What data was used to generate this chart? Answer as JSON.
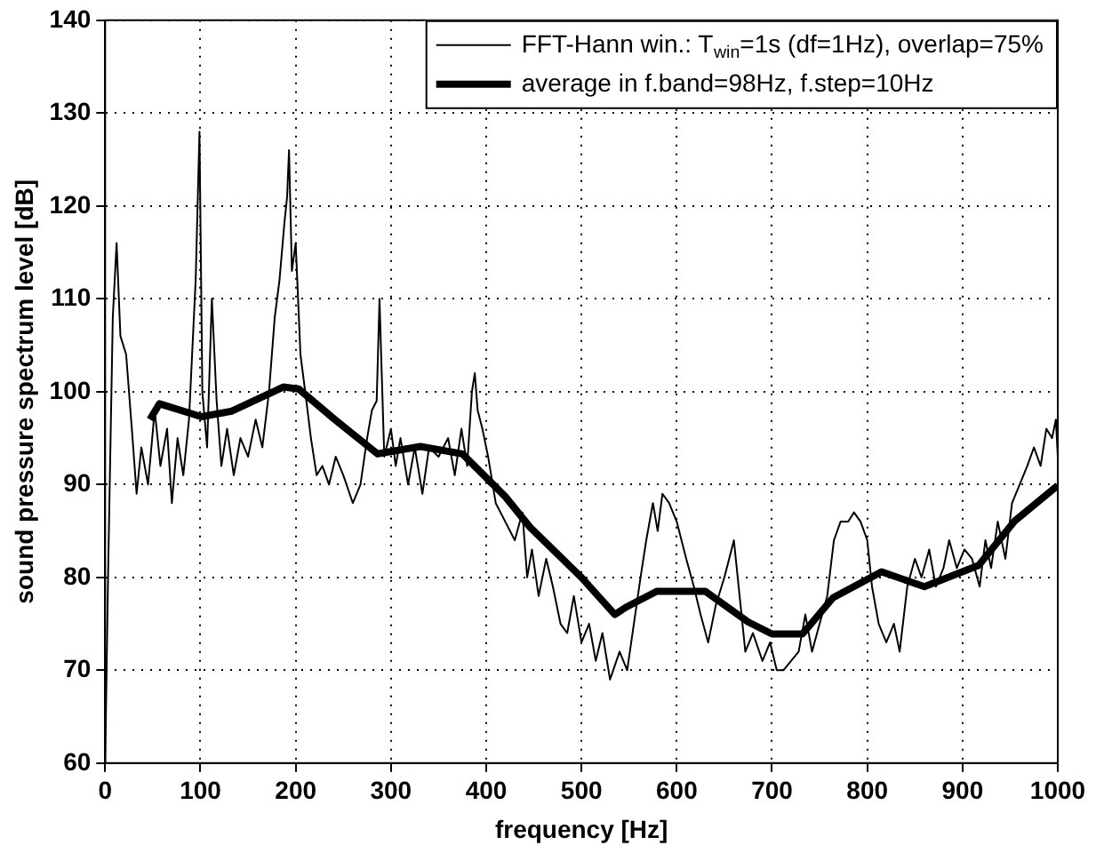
{
  "chart_data": {
    "type": "line",
    "xlabel": "frequency [Hz]",
    "ylabel": "sound pressure spectrum level [dB]",
    "xlim": [
      0,
      1000
    ],
    "xticks": [
      0,
      100,
      200,
      300,
      400,
      500,
      600,
      700,
      800,
      900,
      1000
    ],
    "ylim": [
      60,
      140
    ],
    "yticks": [
      60,
      70,
      80,
      90,
      100,
      110,
      120,
      130,
      140
    ],
    "grid": true,
    "legend": "top right",
    "marker": "none",
    "line_style": "solid",
    "series": [
      {
        "name": "FFT-Hann win.: T$_{win}$=1s (df=1Hz), overlap=75%",
        "color": "#000000",
        "x": [
          0,
          3,
          8,
          12,
          16,
          22,
          28,
          33,
          38,
          45,
          52,
          58,
          65,
          70,
          76,
          82,
          88,
          95,
          99,
          102,
          107,
          112,
          117,
          122,
          128,
          135,
          142,
          150,
          158,
          165,
          172,
          178,
          183,
          188,
          191,
          193,
          196,
          200,
          205,
          210,
          216,
          222,
          228,
          235,
          242,
          250,
          260,
          268,
          275,
          280,
          285,
          288,
          290,
          293,
          300,
          305,
          310,
          318,
          325,
          333,
          340,
          350,
          360,
          367,
          374,
          380,
          385,
          388,
          391,
          396,
          402,
          410,
          420,
          430,
          438,
          443,
          448,
          455,
          463,
          470,
          478,
          485,
          492,
          500,
          508,
          515,
          522,
          530,
          540,
          548,
          555,
          562,
          568,
          575,
          580,
          585,
          592,
          600,
          610,
          618,
          625,
          633,
          641,
          650,
          655,
          660,
          665,
          672,
          680,
          690,
          698,
          705,
          712,
          720,
          728,
          735,
          742,
          750,
          758,
          765,
          772,
          780,
          786,
          793,
          800,
          805,
          812,
          820,
          828,
          834,
          842,
          850,
          857,
          865,
          872,
          880,
          886,
          894,
          902,
          910,
          918,
          924,
          930,
          937,
          945,
          952,
          960,
          968,
          975,
          982,
          988,
          994,
          998,
          1000
        ],
        "values": [
          60,
          80,
          108,
          116,
          106,
          104,
          96,
          89,
          94,
          90,
          98,
          92,
          96,
          88,
          95,
          91,
          97,
          112,
          128,
          100,
          94,
          110,
          99,
          92,
          96,
          91,
          95,
          93,
          97,
          94,
          100,
          108,
          112,
          118,
          121,
          126,
          113,
          116,
          104,
          100,
          95,
          91,
          92,
          90,
          93,
          91,
          88,
          90,
          95,
          98,
          99,
          110,
          103,
          93,
          96,
          92,
          95,
          90,
          94,
          89,
          94,
          93,
          95,
          91,
          96,
          92,
          100,
          102,
          98,
          96,
          93,
          88,
          86,
          84,
          87,
          80,
          83,
          78,
          82,
          79,
          75,
          74,
          78,
          73,
          75,
          71,
          74,
          69,
          72,
          70,
          75,
          80,
          84,
          88,
          85,
          89,
          88,
          86,
          82,
          79,
          76,
          73,
          77,
          80,
          82,
          84,
          79,
          72,
          74,
          71,
          73,
          70,
          70,
          71,
          72,
          76,
          72,
          75,
          78,
          84,
          86,
          86,
          87,
          86,
          84,
          79,
          75,
          73,
          75,
          72,
          79,
          82,
          80,
          83,
          79,
          81,
          84,
          81,
          83,
          82,
          79,
          84,
          81,
          86,
          82,
          88,
          90,
          92,
          94,
          92,
          96,
          95,
          97,
          93
        ]
      },
      {
        "name": "average in f.band=98Hz, f.step=10Hz",
        "color": "#000000",
        "x": [
          47,
          57,
          101,
          133,
          187,
          203,
          241,
          286,
          331,
          375,
          420,
          446,
          500,
          535,
          547,
          579,
          630,
          675,
          700,
          732,
          764,
          815,
          860,
          917,
          955,
          1000
        ],
        "values": [
          97,
          98.7,
          97.3,
          97.9,
          100.5,
          100.3,
          97,
          93.3,
          94.1,
          93.3,
          88.7,
          85.4,
          80,
          76,
          76.8,
          78.5,
          78.5,
          75.2,
          73.9,
          73.9,
          77.8,
          80.6,
          79,
          81.3,
          86.1,
          89.9
        ]
      }
    ]
  }
}
